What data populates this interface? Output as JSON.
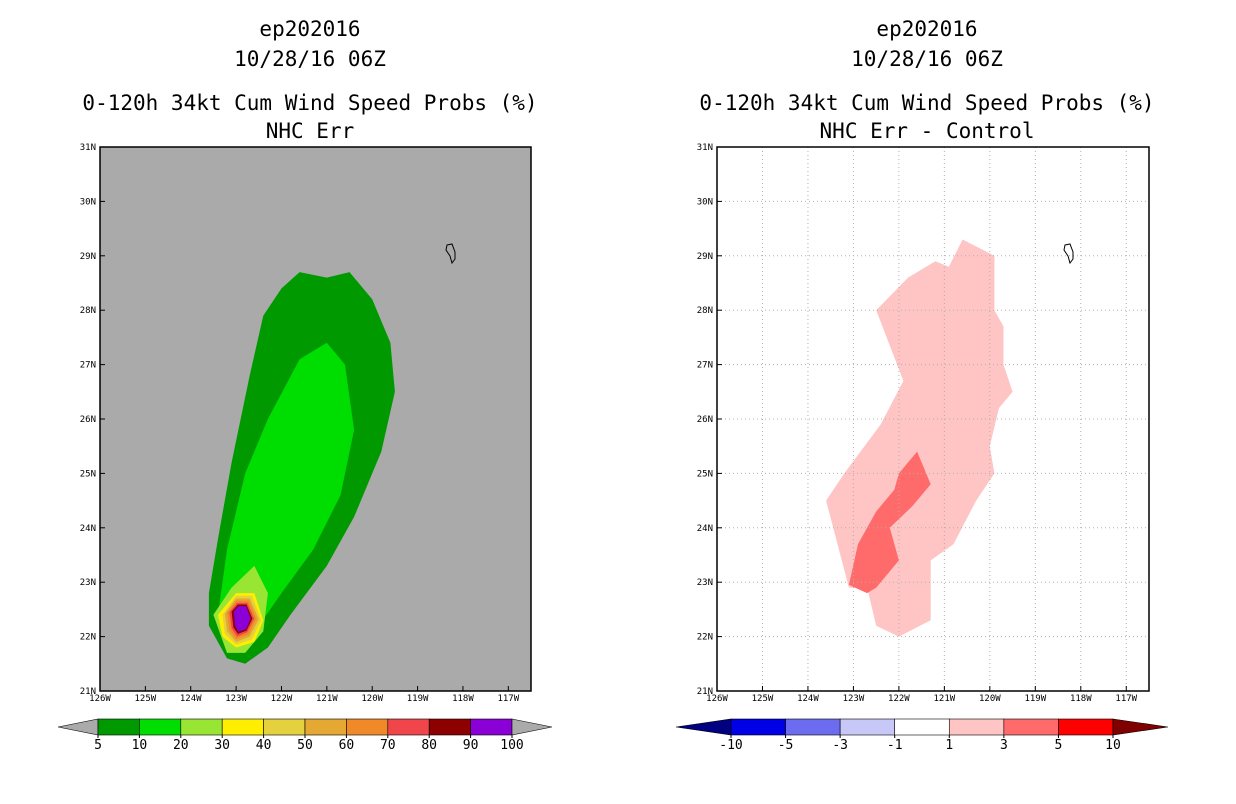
{
  "colors": {
    "land_gray": "#aaaaaa",
    "frame": "#000000",
    "grid": "#b0b0b0"
  },
  "chart_data": [
    {
      "type": "contour-map",
      "title_lines": [
        "ep202016",
        "10/28/16 06Z",
        "0-120h 34kt Cum Wind Speed Probs (%)",
        "NHC Err"
      ],
      "background": "#aaaaaa",
      "grid": false,
      "x_range": [
        -126,
        -116.5
      ],
      "y_range": [
        21,
        31
      ],
      "x_ticks": [
        "126W",
        "125W",
        "124W",
        "123W",
        "122W",
        "121W",
        "120W",
        "119W",
        "118W",
        "117W"
      ],
      "y_ticks": [
        "21N",
        "22N",
        "23N",
        "24N",
        "25N",
        "26N",
        "27N",
        "28N",
        "29N",
        "30N",
        "31N"
      ],
      "colorbar": {
        "levels": [
          "5",
          "10",
          "20",
          "30",
          "40",
          "50",
          "60",
          "70",
          "80",
          "90",
          "100"
        ],
        "colors": [
          "#009900",
          "#00dd00",
          "#99e533",
          "#ffee00",
          "#e5d13d",
          "#e5a832",
          "#f08a28",
          "#f0464b",
          "#8c0000",
          "#8b00d6"
        ],
        "low_end": "#aaaaaa",
        "high_end": "#aaaaaa"
      },
      "contours": [
        {
          "level": "5-10",
          "color": "#009900",
          "points": [
            [
              -123.2,
              21.6
            ],
            [
              -123.6,
              22.2
            ],
            [
              -123.6,
              22.8
            ],
            [
              -123.4,
              23.8
            ],
            [
              -123.1,
              25.2
            ],
            [
              -122.7,
              26.8
            ],
            [
              -122.4,
              27.9
            ],
            [
              -122,
              28.4
            ],
            [
              -121.6,
              28.7
            ],
            [
              -121.0,
              28.6
            ],
            [
              -120.5,
              28.7
            ],
            [
              -120.0,
              28.2
            ],
            [
              -119.6,
              27.4
            ],
            [
              -119.5,
              26.5
            ],
            [
              -119.8,
              25.4
            ],
            [
              -120.4,
              24.2
            ],
            [
              -121.0,
              23.3
            ],
            [
              -121.8,
              22.4
            ],
            [
              -122.3,
              21.8
            ],
            [
              -122.8,
              21.5
            ]
          ]
        },
        {
          "level": "10-20",
          "color": "#00dd00",
          "points": [
            [
              -123.4,
              22.4
            ],
            [
              -123.2,
              23.6
            ],
            [
              -122.8,
              25.0
            ],
            [
              -122.3,
              26.0
            ],
            [
              -121.6,
              27.1
            ],
            [
              -121.0,
              27.4
            ],
            [
              -120.6,
              27.0
            ],
            [
              -120.4,
              25.8
            ],
            [
              -120.7,
              24.6
            ],
            [
              -121.3,
              23.6
            ],
            [
              -122.0,
              22.8
            ],
            [
              -122.5,
              22.2
            ],
            [
              -123.0,
              21.9
            ]
          ]
        },
        {
          "level": "20-30",
          "color": "#99e533",
          "points": [
            [
              -123.5,
              22.4
            ],
            [
              -123.1,
              22.9
            ],
            [
              -122.6,
              23.3
            ],
            [
              -122.3,
              22.8
            ],
            [
              -122.4,
              22.1
            ],
            [
              -122.8,
              21.7
            ],
            [
              -123.2,
              21.7
            ]
          ]
        },
        {
          "level": "30-40",
          "color": "#ffee00",
          "points": [
            [
              -123.4,
              22.4
            ],
            [
              -123.0,
              22.8
            ],
            [
              -122.6,
              22.8
            ],
            [
              -122.4,
              22.3
            ],
            [
              -122.6,
              21.9
            ],
            [
              -123.0,
              21.8
            ],
            [
              -123.3,
              22.0
            ]
          ]
        },
        {
          "level": "40-50",
          "color": "#e5d13d",
          "points": [
            [
              -123.3,
              22.4
            ],
            [
              -123.0,
              22.75
            ],
            [
              -122.65,
              22.75
            ],
            [
              -122.45,
              22.3
            ],
            [
              -122.65,
              21.95
            ],
            [
              -123.0,
              21.85
            ],
            [
              -123.25,
              22.05
            ]
          ]
        },
        {
          "level": "50-60",
          "color": "#e5a832",
          "points": [
            [
              -123.25,
              22.42
            ],
            [
              -123.0,
              22.7
            ],
            [
              -122.7,
              22.7
            ],
            [
              -122.5,
              22.32
            ],
            [
              -122.7,
              22.0
            ],
            [
              -123.0,
              21.9
            ],
            [
              -123.2,
              22.1
            ]
          ]
        },
        {
          "level": "60-70",
          "color": "#f08a28",
          "points": [
            [
              -123.2,
              22.44
            ],
            [
              -123.0,
              22.66
            ],
            [
              -122.72,
              22.66
            ],
            [
              -122.55,
              22.33
            ],
            [
              -122.72,
              22.04
            ],
            [
              -123.0,
              21.95
            ],
            [
              -123.15,
              22.13
            ]
          ]
        },
        {
          "level": "70-80",
          "color": "#f0464b",
          "points": [
            [
              -123.15,
              22.45
            ],
            [
              -122.98,
              22.62
            ],
            [
              -122.75,
              22.62
            ],
            [
              -122.6,
              22.33
            ],
            [
              -122.75,
              22.08
            ],
            [
              -122.98,
              22.0
            ],
            [
              -123.1,
              22.15
            ]
          ]
        },
        {
          "level": "80-90",
          "color": "#8c0000",
          "points": [
            [
              -123.1,
              22.46
            ],
            [
              -122.96,
              22.59
            ],
            [
              -122.77,
              22.59
            ],
            [
              -122.64,
              22.33
            ],
            [
              -122.77,
              22.11
            ],
            [
              -122.96,
              22.05
            ],
            [
              -123.06,
              22.17
            ]
          ]
        },
        {
          "level": "90-100",
          "color": "#8b00d6",
          "points": [
            [
              -123.05,
              22.46
            ],
            [
              -122.95,
              22.56
            ],
            [
              -122.78,
              22.56
            ],
            [
              -122.68,
              22.33
            ],
            [
              -122.78,
              22.14
            ],
            [
              -122.95,
              22.09
            ],
            [
              -123.02,
              22.19
            ]
          ]
        }
      ]
    },
    {
      "type": "contour-map",
      "title_lines": [
        "ep202016",
        "10/28/16 06Z",
        "0-120h 34kt Cum Wind Speed Probs (%)",
        "NHC Err - Control"
      ],
      "background": "#ffffff",
      "grid": true,
      "x_range": [
        -126,
        -116.5
      ],
      "y_range": [
        21,
        31
      ],
      "x_ticks": [
        "126W",
        "125W",
        "124W",
        "123W",
        "122W",
        "121W",
        "120W",
        "119W",
        "118W",
        "117W"
      ],
      "y_ticks": [
        "21N",
        "22N",
        "23N",
        "24N",
        "25N",
        "26N",
        "27N",
        "28N",
        "29N",
        "30N",
        "31N"
      ],
      "colorbar": {
        "levels": [
          "-10",
          "-5",
          "-3",
          "-1",
          "1",
          "3",
          "5",
          "10"
        ],
        "colors": [
          "#0000e6",
          "#6c6cf0",
          "#c8c8f8",
          "#ffffff",
          "#ffc4c4",
          "#ff6a6a",
          "#ff0000"
        ],
        "low_end": "#000080",
        "high_end": "#800000"
      },
      "contours": [
        {
          "level": "1-3",
          "color": "#ffc4c4",
          "points": [
            [
              -123.1,
              22.9
            ],
            [
              -123.6,
              24.5
            ],
            [
              -123.2,
              25.0
            ],
            [
              -122.4,
              25.9
            ],
            [
              -121.9,
              26.7
            ],
            [
              -122.5,
              28.0
            ],
            [
              -121.8,
              28.6
            ],
            [
              -121.2,
              28.9
            ],
            [
              -120.9,
              28.8
            ],
            [
              -120.6,
              29.3
            ],
            [
              -119.9,
              29.0
            ],
            [
              -119.9,
              28.0
            ],
            [
              -119.7,
              27.7
            ],
            [
              -119.7,
              27.0
            ],
            [
              -119.5,
              26.5
            ],
            [
              -119.8,
              26.2
            ],
            [
              -120.0,
              25.5
            ],
            [
              -119.9,
              25.0
            ],
            [
              -120.3,
              24.5
            ],
            [
              -120.8,
              23.7
            ],
            [
              -121.3,
              23.4
            ],
            [
              -121.3,
              22.3
            ],
            [
              -122.0,
              22.0
            ],
            [
              -122.5,
              22.2
            ],
            [
              -122.7,
              22.9
            ]
          ]
        },
        {
          "level": "3-5",
          "color": "#ff6a6a",
          "points": [
            [
              -123.1,
              22.95
            ],
            [
              -122.9,
              23.7
            ],
            [
              -122.5,
              24.3
            ],
            [
              -122.1,
              24.7
            ],
            [
              -122.0,
              25.0
            ],
            [
              -121.6,
              25.4
            ],
            [
              -121.3,
              24.8
            ],
            [
              -121.7,
              24.4
            ],
            [
              -122.2,
              24.0
            ],
            [
              -122.0,
              23.4
            ],
            [
              -122.5,
              22.9
            ],
            [
              -122.7,
              22.8
            ]
          ]
        }
      ]
    }
  ]
}
